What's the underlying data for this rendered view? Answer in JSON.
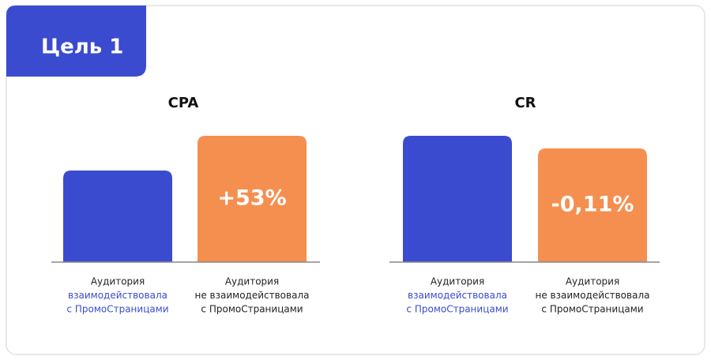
{
  "header": {
    "title": "Цель 1"
  },
  "chart_data": [
    {
      "type": "bar",
      "title": "CPA",
      "categories": [
        [
          "Аудитория",
          "взаимодействовала",
          "с ПромоСтраницами"
        ],
        [
          "Аудитория",
          "не взаимодействовала",
          "с ПромоСтраницами"
        ]
      ],
      "values": [
        116,
        160
      ],
      "colors": [
        "#3b4bcf",
        "#f58f50"
      ],
      "ylim": [
        0,
        160
      ],
      "annotation": "+53%"
    },
    {
      "type": "bar",
      "title": "CR",
      "categories": [
        [
          "Аудитория",
          "взаимодействовала",
          "с ПромоСтраницами"
        ],
        [
          "Аудитория",
          "не взаимодействовала",
          "с ПромоСтраницами"
        ]
      ],
      "values": [
        160,
        144
      ],
      "colors": [
        "#3b4bcf",
        "#f58f50"
      ],
      "ylim": [
        0,
        160
      ],
      "annotation": "-0,11%"
    }
  ]
}
